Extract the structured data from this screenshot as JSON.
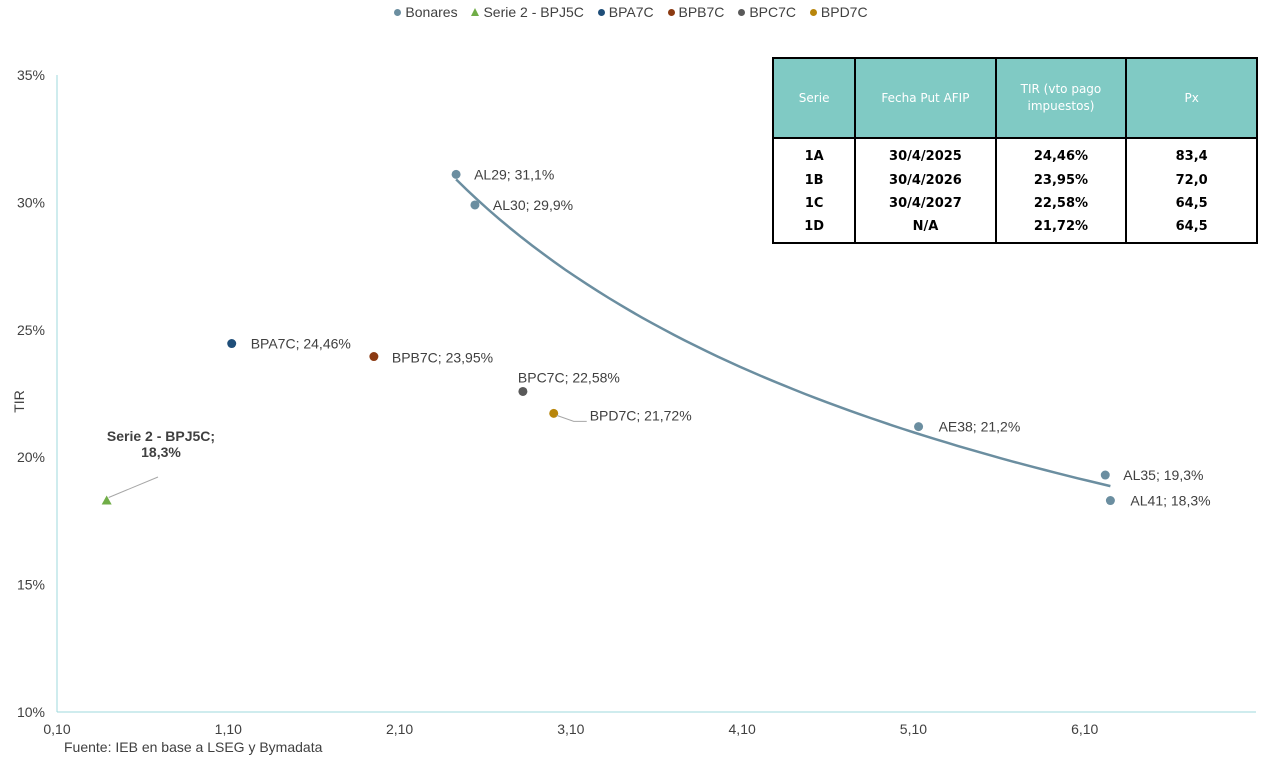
{
  "chart_data": {
    "type": "scatter",
    "ylabel": "TIR",
    "xlabel": "",
    "xlim": [
      0.1,
      7.1
    ],
    "ylim": [
      10,
      35
    ],
    "x_ticks": [
      "0,10",
      "1,10",
      "2,10",
      "3,10",
      "4,10",
      "5,10",
      "6,10"
    ],
    "x_tick_values": [
      0.1,
      1.1,
      2.1,
      3.1,
      4.1,
      5.1,
      6.1
    ],
    "y_ticks": [
      "10%",
      "15%",
      "20%",
      "25%",
      "30%",
      "35%"
    ],
    "y_tick_values": [
      10,
      15,
      20,
      25,
      30,
      35
    ],
    "legend_position": "top",
    "series": [
      {
        "name": "Bonares",
        "marker": "circle",
        "color": "#6b8ea0",
        "points": [
          {
            "x": 2.43,
            "y": 31.1,
            "label": "AL29; 31,1%"
          },
          {
            "x": 2.54,
            "y": 29.9,
            "label": "AL30; 29,9%"
          },
          {
            "x": 5.13,
            "y": 21.2,
            "label": "AE38; 21,2%"
          },
          {
            "x": 6.22,
            "y": 19.3,
            "label": "AL35; 19,3%"
          },
          {
            "x": 6.25,
            "y": 18.3,
            "label": "AL41; 18,3%"
          }
        ]
      },
      {
        "name": "Serie 2 - BPJ5C",
        "marker": "triangle",
        "color": "#70ad47",
        "points": [
          {
            "x": 0.39,
            "y": 18.3,
            "label": "Serie 2 - BPJ5C;\n18,3%"
          }
        ]
      },
      {
        "name": "BPA7C",
        "marker": "circle",
        "color": "#1f4e79",
        "points": [
          {
            "x": 1.12,
            "y": 24.46,
            "label": "BPA7C; 24,46%"
          }
        ]
      },
      {
        "name": "BPB7C",
        "marker": "circle",
        "color": "#8b3a12",
        "points": [
          {
            "x": 1.95,
            "y": 23.95,
            "label": "BPB7C; 23,95%"
          }
        ]
      },
      {
        "name": "BPC7C",
        "marker": "circle",
        "color": "#595959",
        "points": [
          {
            "x": 2.82,
            "y": 22.58,
            "label": "BPC7C; 22,58%"
          }
        ]
      },
      {
        "name": "BPD7C",
        "marker": "circle",
        "color": "#b8860b",
        "points": [
          {
            "x": 3.0,
            "y": 21.72,
            "label": "BPD7C; 21,72%"
          }
        ]
      }
    ],
    "trendline": {
      "series": "Bonares",
      "color": "#6b8ea0"
    }
  },
  "table": {
    "headers": [
      "Serie",
      "Fecha Put AFIP",
      "TIR (vto pago impuestos)",
      "Px"
    ],
    "rows": [
      [
        "1A",
        "30/4/2025",
        "24,46%",
        "83,4"
      ],
      [
        "1B",
        "30/4/2026",
        "23,95%",
        "72,0"
      ],
      [
        "1C",
        "30/4/2027",
        "22,58%",
        "64,5"
      ],
      [
        "1D",
        "N/A",
        "21,72%",
        "64,5"
      ]
    ]
  },
  "source": "Fuente: IEB en base a LSEG y Bymadata"
}
